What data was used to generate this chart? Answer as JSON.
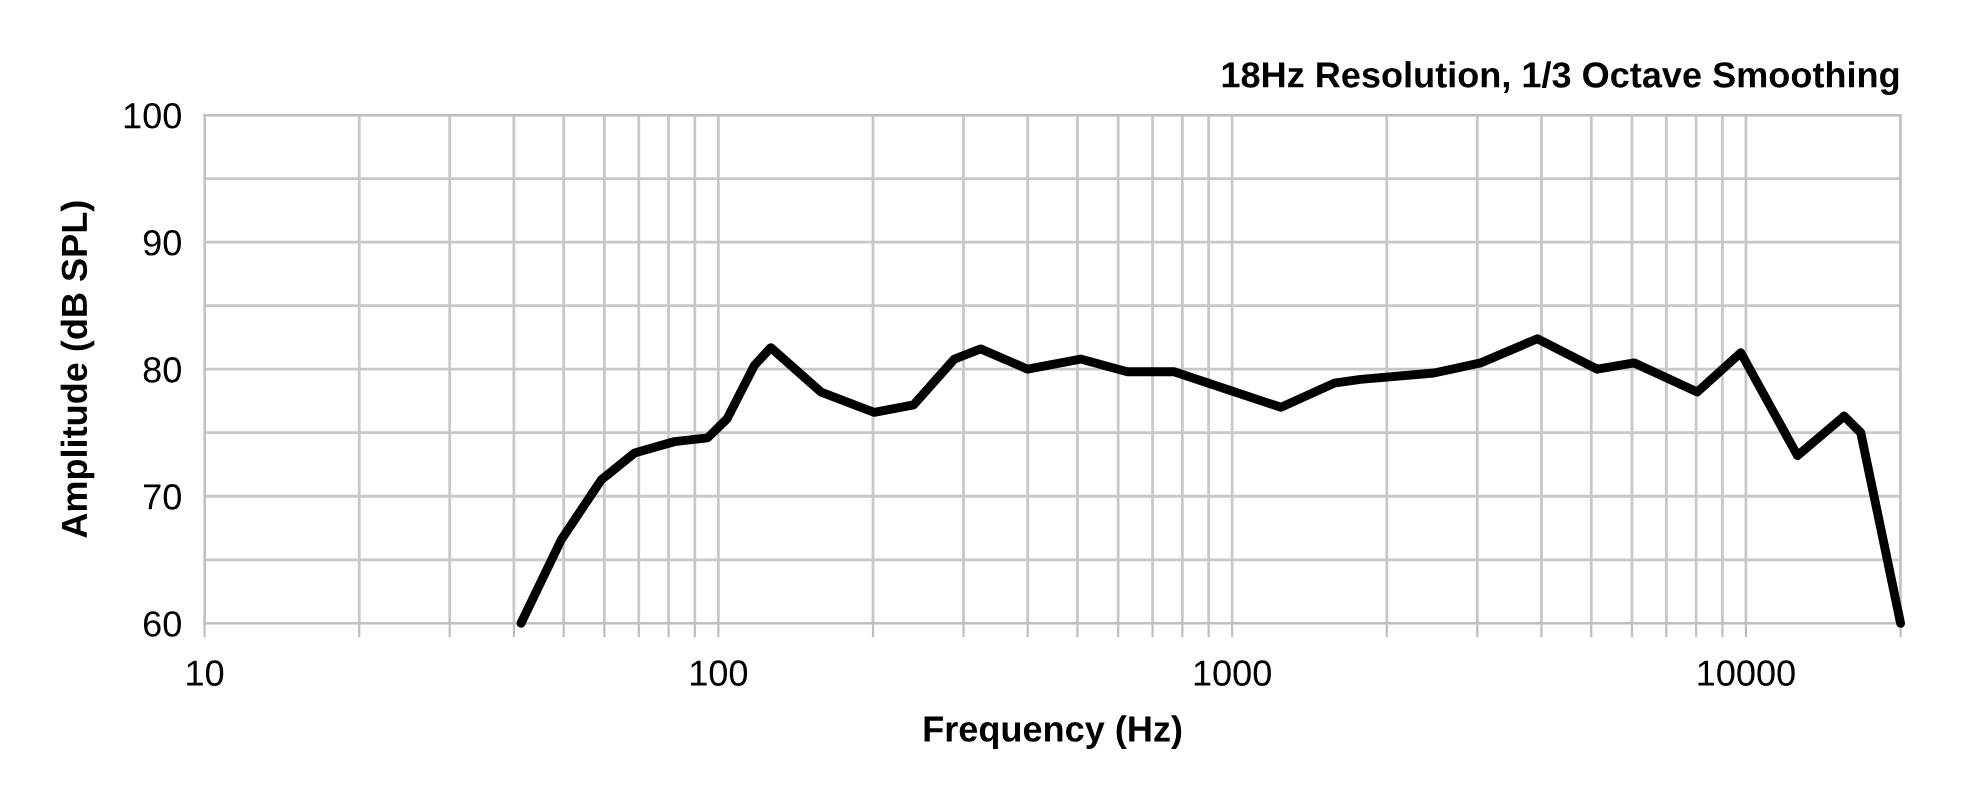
{
  "chart_data": {
    "type": "line",
    "title": "18Hz Resolution, 1/3 Octave Smoothing",
    "xlabel": "Frequency (Hz)",
    "ylabel": "Amplitude (dB SPL)",
    "log": "x",
    "grid": true,
    "line_style": "solid",
    "marker": "none",
    "xlim": [
      10,
      20000
    ],
    "ylim": [
      60,
      100
    ],
    "xticks": [
      10,
      {
        "value": 20,
        "label": null
      },
      {
        "value": 30,
        "label": null
      },
      {
        "value": 40,
        "label": null
      },
      {
        "value": 50,
        "label": null
      },
      {
        "value": 60,
        "label": null
      },
      {
        "value": 70,
        "label": null
      },
      {
        "value": 80,
        "label": null
      },
      {
        "value": 90,
        "label": null
      },
      100,
      {
        "value": 200,
        "label": null
      },
      {
        "value": 300,
        "label": null
      },
      {
        "value": 400,
        "label": null
      },
      {
        "value": 500,
        "label": null
      },
      {
        "value": 600,
        "label": null
      },
      {
        "value": 700,
        "label": null
      },
      {
        "value": 800,
        "label": null
      },
      {
        "value": 900,
        "label": null
      },
      1000,
      {
        "value": 2000,
        "label": null
      },
      {
        "value": 3000,
        "label": null
      },
      {
        "value": 4000,
        "label": null
      },
      {
        "value": 5000,
        "label": null
      },
      {
        "value": 6000,
        "label": null
      },
      {
        "value": 7000,
        "label": null
      },
      {
        "value": 8000,
        "label": null
      },
      {
        "value": 9000,
        "label": null
      },
      10000,
      {
        "value": 20000,
        "label": null
      }
    ],
    "yticks": [
      60,
      {
        "value": 65,
        "label": null
      },
      70,
      {
        "value": 75,
        "label": null
      },
      80,
      {
        "value": 85,
        "label": null
      },
      90,
      {
        "value": 95,
        "label": null
      },
      100
    ],
    "series": [
      {
        "color": "#000000",
        "x": [
          41.3,
          49.5,
          59.2,
          68.7,
          82.1,
          95.3,
          104,
          117.5,
          126.5,
          158.5,
          201,
          240,
          288,
          324,
          400,
          507,
          625,
          771,
          979,
          1245,
          1579,
          1778,
          2472,
          3046,
          3927,
          5138,
          6057,
          8040,
          9770,
          12600,
          15530,
          16730,
          20000
        ],
        "values": [
          60,
          66.6,
          71.3,
          73.4,
          74.3,
          74.6,
          76.1,
          80.3,
          81.7,
          78.2,
          76.6,
          77.2,
          80.8,
          81.6,
          80.0,
          80.8,
          79.8,
          79.8,
          78.4,
          77.0,
          78.9,
          79.2,
          79.7,
          80.5,
          82.4,
          80.0,
          80.5,
          78.2,
          81.3,
          73.2,
          76.3,
          75.0,
          60
        ]
      }
    ]
  }
}
